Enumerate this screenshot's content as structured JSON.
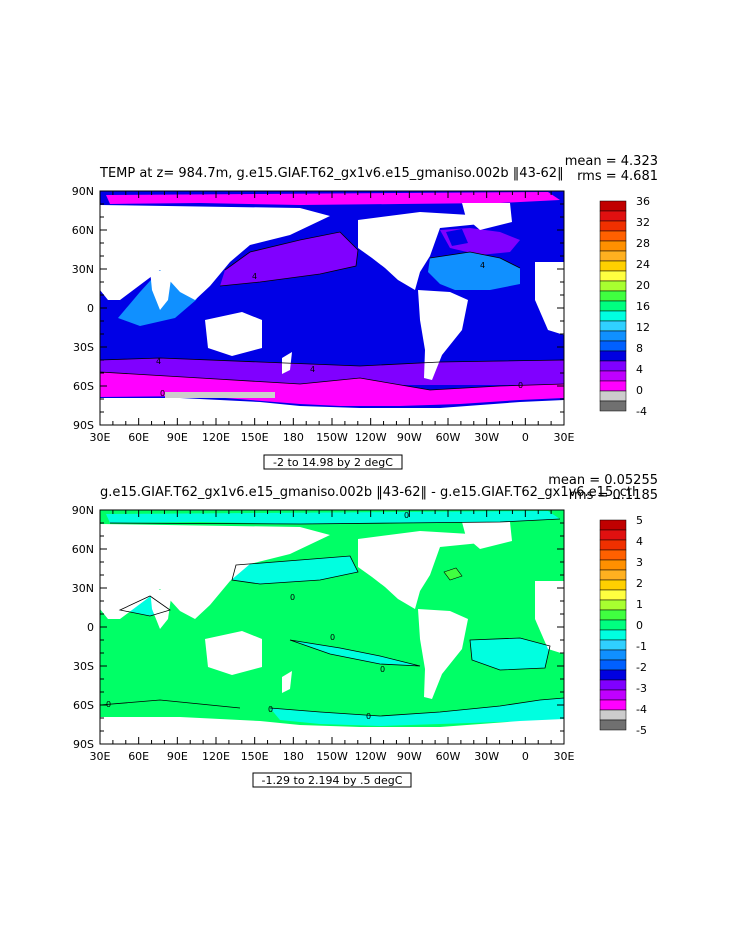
{
  "panels": [
    {
      "title": "TEMP at z= 984.7m, g.e15.GIAF.T62_gx1v6.e15_gmaniso.002b ‖43-62‖",
      "stat1": "mean = 4.323",
      "stat2": "rms = 4.681",
      "range_label": "-2 to 14.98 by 2 degC",
      "colorbar_labels": [
        "36",
        "32",
        "28",
        "24",
        "20",
        "16",
        "12",
        "8",
        "4",
        "0",
        "-4"
      ],
      "colorbar_colors": [
        "#c00000",
        "#e01010",
        "#f03000",
        "#ff6000",
        "#ff9000",
        "#ffb020",
        "#ffd000",
        "#ffff40",
        "#a8ff30",
        "#40ff40",
        "#00ff80",
        "#00ffe0",
        "#30d0ff",
        "#1090ff",
        "#0060ff",
        "#0000e0",
        "#8000ff",
        "#c000ff",
        "#ff00ff",
        "#cccccc",
        "#707070"
      ],
      "contour_labels": [
        "0",
        "4",
        "4",
        "4",
        "4",
        "0"
      ]
    },
    {
      "title": "g.e15.GIAF.T62_gx1v6.e15_gmaniso.002b ‖43-62‖ - g.e15.GIAF.T62_gx1v6.e15_ctl",
      "stat1": "mean = 0.05255",
      "stat2": "rms = 0.1185",
      "range_label": "-1.29 to 2.194 by .5 degC",
      "colorbar_labels": [
        "5",
        "4",
        "3",
        "2",
        "1",
        "0",
        "-1",
        "-2",
        "-3",
        "-4",
        "-5"
      ],
      "colorbar_colors": [
        "#c00000",
        "#e01010",
        "#f03000",
        "#ff6000",
        "#ff9000",
        "#ffb020",
        "#ffd000",
        "#ffff40",
        "#a8ff30",
        "#40ff40",
        "#00ff80",
        "#00ffe0",
        "#30d0ff",
        "#1090ff",
        "#0060ff",
        "#0000e0",
        "#8000ff",
        "#c000ff",
        "#ff00ff",
        "#cccccc",
        "#707070"
      ],
      "contour_labels": [
        "0",
        "0",
        "0",
        "0",
        "0",
        "0",
        "0"
      ]
    }
  ],
  "lat_labels": [
    "90N",
    "60N",
    "30N",
    "0",
    "30S",
    "60S",
    "90S"
  ],
  "lon_labels": [
    "30E",
    "60E",
    "90E",
    "120E",
    "150E",
    "180",
    "150W",
    "120W",
    "90W",
    "60W",
    "30W",
    "0",
    "30E"
  ]
}
